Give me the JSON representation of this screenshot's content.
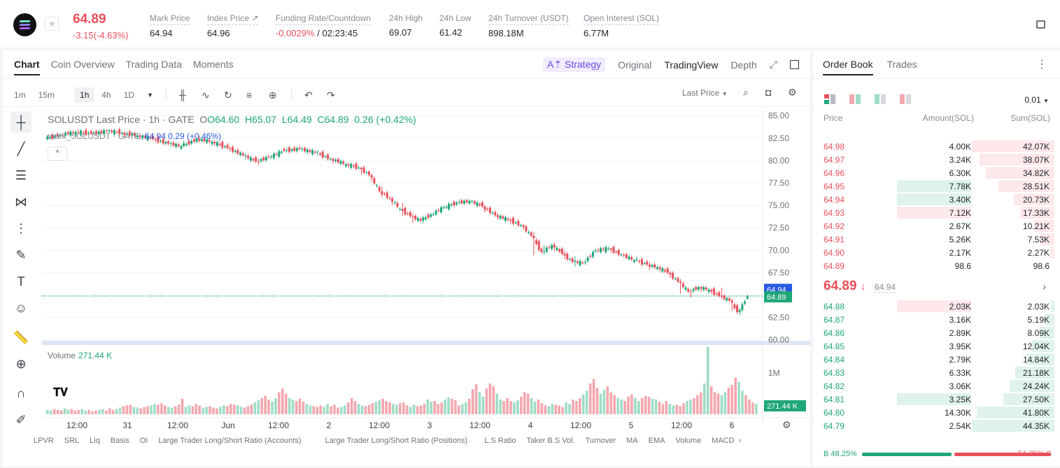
{
  "header": {
    "price": "64.89",
    "change": "-3.15(-4.63%)",
    "mark_price_label": "Mark Price",
    "mark_price": "64.94",
    "index_price_label": "Index Price ↗",
    "index_price": "64.96",
    "funding_label": "Funding Rate/Countdown",
    "funding_rate": "-0.0029%",
    "countdown": "/ 02:23:45",
    "high_label": "24h High",
    "high": "69.07",
    "low_label": "24h Low",
    "low": "61.42",
    "turnover_label": "24h Turnover (USDT)",
    "turnover": "898.18M",
    "oi_label": "Open Interest (SOL)",
    "oi": "6.77M"
  },
  "chart_tabs": [
    "Chart",
    "Coin Overview",
    "Trading Data",
    "Moments"
  ],
  "view_tabs": {
    "strategy": "Strategy",
    "original": "Original",
    "tradingview": "TradingView",
    "depth": "Depth"
  },
  "intervals": [
    "1m",
    "15m",
    "1h",
    "4h",
    "1D"
  ],
  "selected_interval": "1h",
  "last_price_select": "Last Price",
  "legend": {
    "symbol": "SOLUSDT Last Price · 1h · GATE",
    "o": "O64.60",
    "h": "H65.07",
    "l": "L64.49",
    "c": "C64.89",
    "chg": "0.26 (+0.42%)",
    "mark": "mark_SOLUSDT · GATE",
    "mark_vals": "64.94 0.29 (+0.46%)"
  },
  "volume": {
    "label": "Volume",
    "value": "271.44 K",
    "tag": "271.44 K",
    "axis_1m": "1M"
  },
  "price_tags": {
    "mark": "64.94",
    "last": "64.89"
  },
  "indicators": [
    "LPVR",
    "SRL",
    "Liq",
    "Basis",
    "OI",
    "Large Trader Long/Short Ratio (Accounts)",
    "Large Trader Long/Short Ratio (Positions)",
    "L.S Ratio",
    "Taker B.S Vol.",
    "Turnover",
    "MA",
    "EMA",
    "Volume",
    "MACD"
  ],
  "chart_data": {
    "type": "candlestick",
    "y_ticks": [
      "85.00",
      "82.50",
      "80.00",
      "77.50",
      "75.00",
      "72.50",
      "70.00",
      "67.50",
      "65.00",
      "62.50",
      "60.00"
    ],
    "ylim": [
      59.9,
      85.6
    ],
    "x_ticks": [
      "12:00",
      "31",
      "12:00",
      "Jun",
      "12:00",
      "2",
      "12:00",
      "3",
      "12:00",
      "4",
      "12:00",
      "5",
      "12:00",
      "6"
    ],
    "close_path": [
      [
        0,
        82.7
      ],
      [
        20,
        83.1
      ],
      [
        40,
        83.3
      ],
      [
        55,
        83.1
      ],
      [
        70,
        82.8
      ],
      [
        85,
        82.1
      ],
      [
        100,
        81.6
      ],
      [
        110,
        82.4
      ],
      [
        125,
        82.2
      ],
      [
        140,
        81.3
      ],
      [
        155,
        80.1
      ],
      [
        170,
        79.8
      ],
      [
        185,
        81.1
      ],
      [
        200,
        81.3
      ],
      [
        215,
        81.0
      ],
      [
        230,
        79.6
      ],
      [
        240,
        79.2
      ],
      [
        250,
        78.4
      ],
      [
        262,
        75.8
      ],
      [
        275,
        74.1
      ],
      [
        290,
        73.6
      ],
      [
        305,
        74.7
      ],
      [
        320,
        75.4
      ],
      [
        335,
        74.4
      ],
      [
        350,
        73.4
      ],
      [
        365,
        72.7
      ],
      [
        378,
        71.4
      ],
      [
        390,
        70.1
      ],
      [
        402,
        69.0
      ],
      [
        415,
        68.6
      ],
      [
        425,
        70.0
      ],
      [
        440,
        69.5
      ],
      [
        455,
        68.5
      ],
      [
        470,
        68.1
      ],
      [
        482,
        67.5
      ],
      [
        492,
        65.7
      ],
      [
        502,
        65.4
      ],
      [
        512,
        65.7
      ],
      [
        522,
        64.8
      ],
      [
        532,
        64.2
      ],
      [
        540,
        64.6
      ],
      [
        546,
        64.89
      ]
    ],
    "candles": [
      {
        "x": 2,
        "o": 82.4,
        "c": 82.9,
        "h": 83.1,
        "l": 82.2
      },
      {
        "x": 14,
        "o": 82.9,
        "c": 83.2,
        "h": 83.4,
        "l": 82.7
      },
      {
        "x": 26,
        "o": 83.2,
        "c": 83.0,
        "h": 83.5,
        "l": 82.8
      },
      {
        "x": 38,
        "o": 83.0,
        "c": 83.3,
        "h": 83.5,
        "l": 82.9
      },
      {
        "x": 50,
        "o": 83.3,
        "c": 83.1,
        "h": 83.4,
        "l": 82.8
      },
      {
        "x": 62,
        "o": 83.1,
        "c": 82.8,
        "h": 83.3,
        "l": 82.5
      },
      {
        "x": 74,
        "o": 82.8,
        "c": 82.4,
        "h": 83.0,
        "l": 82.1
      },
      {
        "x": 86,
        "o": 82.4,
        "c": 81.9,
        "h": 82.6,
        "l": 81.6
      },
      {
        "x": 98,
        "o": 81.9,
        "c": 81.6,
        "h": 82.1,
        "l": 81.3
      },
      {
        "x": 108,
        "o": 81.6,
        "c": 82.4,
        "h": 82.7,
        "l": 81.5
      },
      {
        "x": 120,
        "o": 82.4,
        "c": 82.1,
        "h": 82.8,
        "l": 81.9
      },
      {
        "x": 132,
        "o": 82.1,
        "c": 81.4,
        "h": 82.3,
        "l": 81.1
      },
      {
        "x": 144,
        "o": 81.4,
        "c": 80.6,
        "h": 81.6,
        "l": 80.3
      },
      {
        "x": 156,
        "o": 80.6,
        "c": 79.9,
        "h": 80.8,
        "l": 79.4
      },
      {
        "x": 166,
        "o": 79.9,
        "c": 80.4,
        "h": 80.7,
        "l": 79.6
      },
      {
        "x": 176,
        "o": 80.4,
        "c": 81.1,
        "h": 81.3,
        "l": 80.2
      },
      {
        "x": 188,
        "o": 81.1,
        "c": 81.3,
        "h": 81.6,
        "l": 80.9
      },
      {
        "x": 200,
        "o": 81.3,
        "c": 80.9,
        "h": 81.5,
        "l": 80.6
      },
      {
        "x": 212,
        "o": 80.9,
        "c": 80.2,
        "h": 81.1,
        "l": 79.9
      },
      {
        "x": 224,
        "o": 80.2,
        "c": 79.6,
        "h": 80.3,
        "l": 79.3
      },
      {
        "x": 236,
        "o": 79.6,
        "c": 79.2,
        "h": 79.8,
        "l": 78.9
      },
      {
        "x": 246,
        "o": 79.2,
        "c": 78.4,
        "h": 79.3,
        "l": 77.8
      },
      {
        "x": 254,
        "o": 78.4,
        "c": 76.6,
        "h": 78.5,
        "l": 76.2
      },
      {
        "x": 262,
        "o": 76.6,
        "c": 75.8,
        "h": 77.1,
        "l": 75.5
      },
      {
        "x": 270,
        "o": 75.8,
        "c": 74.6,
        "h": 76.0,
        "l": 74.2
      },
      {
        "x": 278,
        "o": 74.6,
        "c": 73.8,
        "h": 75.3,
        "l": 73.2
      },
      {
        "x": 286,
        "o": 73.8,
        "c": 73.3,
        "h": 74.1,
        "l": 72.6
      },
      {
        "x": 294,
        "o": 73.3,
        "c": 74.0,
        "h": 74.2,
        "l": 73.0
      },
      {
        "x": 302,
        "o": 74.0,
        "c": 74.8,
        "h": 75.0,
        "l": 73.8
      },
      {
        "x": 312,
        "o": 74.8,
        "c": 75.3,
        "h": 75.5,
        "l": 74.6
      },
      {
        "x": 322,
        "o": 75.3,
        "c": 75.5,
        "h": 75.8,
        "l": 75.1
      },
      {
        "x": 332,
        "o": 75.5,
        "c": 74.9,
        "h": 75.6,
        "l": 74.6
      },
      {
        "x": 342,
        "o": 74.9,
        "c": 73.9,
        "h": 75.0,
        "l": 73.6
      },
      {
        "x": 352,
        "o": 73.9,
        "c": 73.4,
        "h": 74.1,
        "l": 73.1
      },
      {
        "x": 362,
        "o": 73.4,
        "c": 72.8,
        "h": 73.6,
        "l": 72.4
      },
      {
        "x": 372,
        "o": 72.8,
        "c": 71.6,
        "h": 72.9,
        "l": 71.3
      },
      {
        "x": 380,
        "o": 71.6,
        "c": 69.8,
        "h": 72.0,
        "l": 67.9
      },
      {
        "x": 388,
        "o": 69.8,
        "c": 70.6,
        "h": 71.3,
        "l": 69.5
      },
      {
        "x": 396,
        "o": 70.6,
        "c": 69.6,
        "h": 70.9,
        "l": 69.2
      },
      {
        "x": 404,
        "o": 69.6,
        "c": 68.7,
        "h": 69.9,
        "l": 68.3
      },
      {
        "x": 412,
        "o": 68.7,
        "c": 68.6,
        "h": 69.2,
        "l": 68.1
      },
      {
        "x": 420,
        "o": 68.6,
        "c": 70.0,
        "h": 70.3,
        "l": 68.4
      },
      {
        "x": 430,
        "o": 70.0,
        "c": 70.2,
        "h": 70.5,
        "l": 69.8
      },
      {
        "x": 440,
        "o": 70.2,
        "c": 69.5,
        "h": 70.3,
        "l": 69.2
      },
      {
        "x": 450,
        "o": 69.5,
        "c": 68.9,
        "h": 69.7,
        "l": 68.6
      },
      {
        "x": 460,
        "o": 68.9,
        "c": 68.4,
        "h": 69.2,
        "l": 68.2
      },
      {
        "x": 470,
        "o": 68.4,
        "c": 68.1,
        "h": 68.7,
        "l": 67.7
      },
      {
        "x": 478,
        "o": 68.1,
        "c": 67.5,
        "h": 68.3,
        "l": 67.2
      },
      {
        "x": 486,
        "o": 67.5,
        "c": 66.5,
        "h": 67.7,
        "l": 66.1
      },
      {
        "x": 494,
        "o": 66.5,
        "c": 65.4,
        "h": 66.8,
        "l": 64.2
      },
      {
        "x": 502,
        "o": 65.4,
        "c": 65.9,
        "h": 66.2,
        "l": 64.8
      },
      {
        "x": 510,
        "o": 65.9,
        "c": 65.6,
        "h": 66.0,
        "l": 65.2
      },
      {
        "x": 518,
        "o": 65.6,
        "c": 64.9,
        "h": 65.7,
        "l": 64.6
      },
      {
        "x": 526,
        "o": 64.9,
        "c": 64.4,
        "h": 65.8,
        "l": 64.1
      },
      {
        "x": 534,
        "o": 64.4,
        "c": 63.1,
        "h": 64.6,
        "l": 62.2
      },
      {
        "x": 540,
        "o": 63.1,
        "c": 64.3,
        "h": 64.5,
        "l": 62.8
      },
      {
        "x": 546,
        "o": 64.6,
        "c": 64.89,
        "h": 65.07,
        "l": 64.49
      }
    ],
    "volumes": [
      0.06,
      0.05,
      0.07,
      0.06,
      0.05,
      0.08,
      0.06,
      0.07,
      0.05,
      0.06,
      0.07,
      0.05,
      0.06,
      0.04,
      0.05,
      0.06,
      0.07,
      0.05,
      0.08,
      0.06,
      0.07,
      0.09,
      0.11,
      0.12,
      0.13,
      0.1,
      0.09,
      0.08,
      0.1,
      0.11,
      0.12,
      0.14,
      0.13,
      0.15,
      0.12,
      0.1,
      0.09,
      0.11,
      0.13,
      0.21,
      0.1,
      0.12,
      0.11,
      0.14,
      0.12,
      0.09,
      0.1,
      0.11,
      0.09,
      0.08,
      0.1,
      0.12,
      0.11,
      0.14,
      0.13,
      0.12,
      0.1,
      0.09,
      0.11,
      0.13,
      0.16,
      0.19,
      0.22,
      0.25,
      0.2,
      0.17,
      0.22,
      0.3,
      0.35,
      0.28,
      0.22,
      0.2,
      0.18,
      0.21,
      0.17,
      0.14,
      0.12,
      0.11,
      0.1,
      0.12,
      0.1,
      0.14,
      0.11,
      0.13,
      0.09,
      0.1,
      0.12,
      0.16,
      0.22,
      0.18,
      0.14,
      0.12,
      0.11,
      0.13,
      0.15,
      0.17,
      0.19,
      0.21,
      0.18,
      0.16,
      0.14,
      0.13,
      0.15,
      0.16,
      0.12,
      0.1,
      0.13,
      0.11,
      0.12,
      0.14,
      0.2,
      0.17,
      0.18,
      0.14,
      0.16,
      0.2,
      0.23,
      0.21,
      0.19,
      0.12,
      0.14,
      0.16,
      0.21,
      0.34,
      0.41,
      0.3,
      0.24,
      0.35,
      0.42,
      0.38,
      0.28,
      0.2,
      0.18,
      0.22,
      0.18,
      0.16,
      0.19,
      0.24,
      0.3,
      0.28,
      0.22,
      0.17,
      0.2,
      0.15,
      0.12,
      0.11,
      0.14,
      0.13,
      0.12,
      0.1,
      0.16,
      0.14,
      0.2,
      0.18,
      0.22,
      0.27,
      0.32,
      0.42,
      0.48,
      0.36,
      0.28,
      0.33,
      0.38,
      0.3,
      0.26,
      0.22,
      0.2,
      0.18,
      0.24,
      0.27,
      0.22,
      0.18,
      0.22,
      0.25,
      0.24,
      0.21,
      0.2,
      0.17,
      0.14,
      0.18,
      0.14,
      0.12,
      0.13,
      0.11,
      0.15,
      0.18,
      0.2,
      0.22,
      0.26,
      0.3,
      0.42,
      0.92,
      0.38,
      0.3,
      0.28,
      0.26,
      0.3,
      0.36,
      0.4,
      0.5,
      0.44,
      0.32,
      0.26,
      0.2,
      0.16,
      0.14
    ]
  },
  "orderbook": {
    "tabs": [
      "Order Book",
      "Trades"
    ],
    "precision": "0.01",
    "headers": {
      "price": "Price",
      "amount": "Amount(SOL)",
      "sum": "Sum(SOL)"
    },
    "asks": [
      {
        "price": "64.98",
        "amount": "4.00K",
        "sum": "42.07K",
        "sum_frac": 1.0,
        "amt_frac": 0.0
      },
      {
        "price": "64.97",
        "amount": "3.24K",
        "sum": "38.07K",
        "sum_frac": 0.905,
        "amt_frac": 0.0
      },
      {
        "price": "64.96",
        "amount": "6.30K",
        "sum": "34.82K",
        "sum_frac": 0.828,
        "amt_frac": 0.0
      },
      {
        "price": "64.95",
        "amount": "7.78K",
        "sum": "28.51K",
        "sum_frac": 0.678,
        "amt_frac": 1.0,
        "amt_green": true
      },
      {
        "price": "64.94",
        "amount": "3.40K",
        "sum": "20.73K",
        "sum_frac": 0.493,
        "amt_frac": 1.0,
        "amt_green": true
      },
      {
        "price": "64.93",
        "amount": "7.12K",
        "sum": "17.33K",
        "sum_frac": 0.412,
        "amt_frac": 1.0
      },
      {
        "price": "64.92",
        "amount": "2.67K",
        "sum": "10.21K",
        "sum_frac": 0.243,
        "amt_frac": 0.0
      },
      {
        "price": "64.91",
        "amount": "5.26K",
        "sum": "7.53K",
        "sum_frac": 0.179,
        "amt_frac": 0.0
      },
      {
        "price": "64.90",
        "amount": "2.17K",
        "sum": "2.27K",
        "sum_frac": 0.054,
        "amt_frac": 0.0
      },
      {
        "price": "64.89",
        "amount": "98.6",
        "sum": "98.6",
        "sum_frac": 0.0,
        "amt_frac": 0.0
      }
    ],
    "mid_price": "64.89",
    "mid_arrow": "↓",
    "mid_mark": "64.94",
    "bids": [
      {
        "price": "64.88",
        "amount": "2.03K",
        "sum": "2.03K",
        "sum_frac": 0.046,
        "amt_frac": 1.0,
        "amt_red": true
      },
      {
        "price": "64.87",
        "amount": "3.16K",
        "sum": "5.19K",
        "sum_frac": 0.117,
        "amt_frac": 0.0
      },
      {
        "price": "64.86",
        "amount": "2.89K",
        "sum": "8.09K",
        "sum_frac": 0.182,
        "amt_frac": 0.0
      },
      {
        "price": "64.85",
        "amount": "3.95K",
        "sum": "12.04K",
        "sum_frac": 0.271,
        "amt_frac": 0.0
      },
      {
        "price": "64.84",
        "amount": "2.79K",
        "sum": "14.84K",
        "sum_frac": 0.335,
        "amt_frac": 0.0
      },
      {
        "price": "64.83",
        "amount": "6.33K",
        "sum": "21.18K",
        "sum_frac": 0.477,
        "amt_frac": 0.0
      },
      {
        "price": "64.82",
        "amount": "3.06K",
        "sum": "24.24K",
        "sum_frac": 0.546,
        "amt_frac": 0.0
      },
      {
        "price": "64.81",
        "amount": "3.25K",
        "sum": "27.50K",
        "sum_frac": 0.62,
        "amt_frac": 1.0,
        "amt_green": true
      },
      {
        "price": "64.80",
        "amount": "14.30K",
        "sum": "41.80K",
        "sum_frac": 0.942,
        "amt_frac": 0.0
      },
      {
        "price": "64.79",
        "amount": "2.54K",
        "sum": "44.35K",
        "sum_frac": 1.0,
        "amt_frac": 0.0
      }
    ],
    "buy_ratio": "B 48.25%",
    "sell_ratio": "51.75% S",
    "buy_frac": 0.4825
  },
  "colors": {
    "up": "#1fa67a",
    "down": "#e8505b",
    "up_light": "#dff3ea",
    "down_light": "#fde8ea",
    "accent": "#6d4ce6",
    "mark_tag": "#2a5be3"
  }
}
